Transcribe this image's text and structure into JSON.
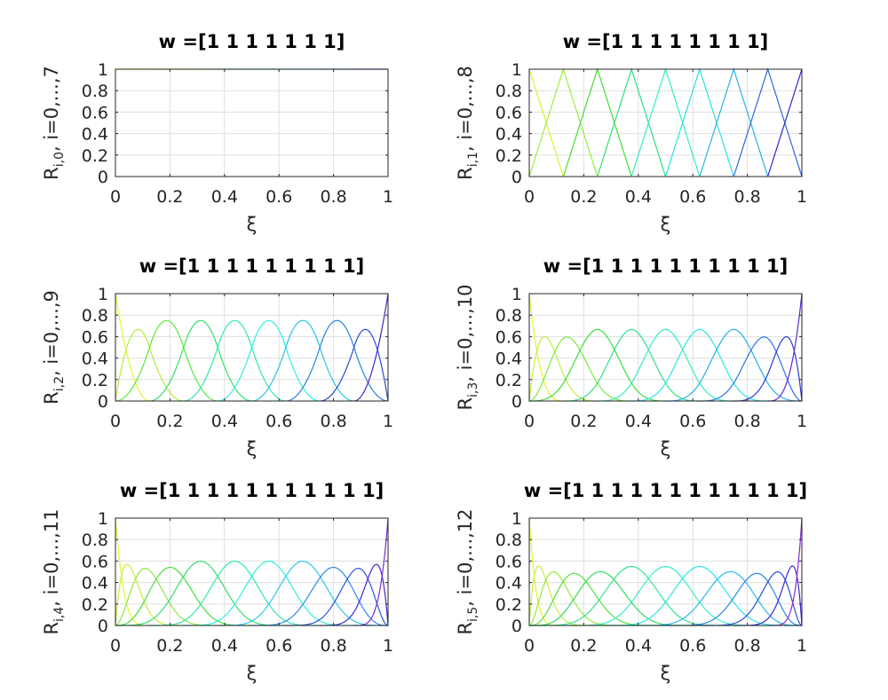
{
  "chart_data": [
    {
      "type": "line",
      "title": "w =[1 1 1 1 1 1 1]",
      "xlabel": "ξ",
      "ylabel": {
        "main": "R",
        "sub": "i,0",
        "suffix": ", i=0,...,7"
      },
      "xlim": [
        0,
        1
      ],
      "ylim": [
        0,
        1
      ],
      "xticks": [
        "0",
        "0.2",
        "0.4",
        "0.6",
        "0.8",
        "1"
      ],
      "yticks": [
        "0",
        "0.2",
        "0.4",
        "0.6",
        "0.8",
        "1"
      ],
      "grid": true,
      "degree": 0,
      "num_functions": 8,
      "colors": [
        "#e3f52a",
        "#bdf03a",
        "#7fe83c",
        "#3bdc5a",
        "#35e1b9",
        "#2ad9e8",
        "#2a9ce8",
        "#2a4cdc"
      ]
    },
    {
      "type": "line",
      "title": "w =[1 1 1 1 1 1 1 1]",
      "xlabel": "ξ",
      "ylabel": {
        "main": "R",
        "sub": "i,1",
        "suffix": ", i=0,...,8"
      },
      "xlim": [
        0,
        1
      ],
      "ylim": [
        0,
        1
      ],
      "xticks": [
        "0",
        "0.2",
        "0.4",
        "0.6",
        "0.8",
        "1"
      ],
      "yticks": [
        "0",
        "0.2",
        "0.4",
        "0.6",
        "0.8",
        "1"
      ],
      "grid": true,
      "degree": 1,
      "num_functions": 9,
      "colors": [
        "#d6f52a",
        "#9eee38",
        "#46dc36",
        "#2ee07d",
        "#2ef0c8",
        "#2ae0e0",
        "#27b3e6",
        "#2a6ae0",
        "#2a2ad0"
      ]
    },
    {
      "type": "line",
      "title": "w =[1 1 1 1 1 1 1 1 1]",
      "xlabel": "ξ",
      "ylabel": {
        "main": "R",
        "sub": "i,2",
        "suffix": ", i=0,...,9"
      },
      "xlim": [
        0,
        1
      ],
      "ylim": [
        0,
        1
      ],
      "xticks": [
        "0",
        "0.2",
        "0.4",
        "0.6",
        "0.8",
        "1"
      ],
      "yticks": [
        "0",
        "0.2",
        "0.4",
        "0.6",
        "0.8",
        "1"
      ],
      "grid": true,
      "degree": 2,
      "num_functions": 10,
      "colors": [
        "#e6f52a",
        "#b4f03a",
        "#5ee83a",
        "#33df6a",
        "#33e8a8",
        "#2ef0e0",
        "#2ac3ea",
        "#2a80e6",
        "#2a4ad6",
        "#3a2ac8"
      ]
    },
    {
      "type": "line",
      "title": "w =[1 1 1 1 1 1 1 1 1 1]",
      "xlabel": "ξ",
      "ylabel": {
        "main": "R",
        "sub": "i,3",
        "suffix": ", i=0,...,10"
      },
      "xlim": [
        0,
        1
      ],
      "ylim": [
        0,
        1
      ],
      "xticks": [
        "0",
        "0.2",
        "0.4",
        "0.6",
        "0.8",
        "1"
      ],
      "yticks": [
        "0",
        "0.2",
        "0.4",
        "0.6",
        "0.8",
        "1"
      ],
      "grid": true,
      "degree": 3,
      "num_functions": 11,
      "colors": [
        "#e6f52a",
        "#bff03a",
        "#7ee83c",
        "#3ede3c",
        "#33e08a",
        "#33ecc2",
        "#2ae6e6",
        "#2ab0ea",
        "#2a72e4",
        "#2a3cd4",
        "#5a2ad0"
      ]
    },
    {
      "type": "line",
      "title": "w =[1 1 1 1 1 1 1 1 1 1 1]",
      "xlabel": "ξ",
      "ylabel": {
        "main": "R",
        "sub": "i,4",
        "suffix": ", i=0,...,11"
      },
      "xlim": [
        0,
        1
      ],
      "ylim": [
        0,
        1
      ],
      "xticks": [
        "0",
        "0.2",
        "0.4",
        "0.6",
        "0.8",
        "1"
      ],
      "yticks": [
        "0",
        "0.2",
        "0.4",
        "0.6",
        "0.8",
        "1"
      ],
      "grid": true,
      "degree": 4,
      "num_functions": 12,
      "colors": [
        "#e6f52a",
        "#c4f03a",
        "#8ae83c",
        "#4adc3c",
        "#33dc6e",
        "#33e8a8",
        "#2ef0de",
        "#2ac8ec",
        "#2a8ce8",
        "#2a56dc",
        "#3a2ad0",
        "#7a2ad8"
      ]
    },
    {
      "type": "line",
      "title": "w =[1 1 1 1 1 1 1 1 1 1 1 1]",
      "xlabel": "ξ",
      "ylabel": {
        "main": "R",
        "sub": "i,5",
        "suffix": ", i=0,...,12"
      },
      "xlim": [
        0,
        1
      ],
      "ylim": [
        0,
        1
      ],
      "xticks": [
        "0",
        "0.2",
        "0.4",
        "0.6",
        "0.8",
        "1"
      ],
      "yticks": [
        "0",
        "0.2",
        "0.4",
        "0.6",
        "0.8",
        "1"
      ],
      "grid": true,
      "degree": 5,
      "num_functions": 13,
      "colors": [
        "#e6f52a",
        "#c8f03a",
        "#94ea3c",
        "#56de3c",
        "#33da5e",
        "#33e496",
        "#33eec8",
        "#2ae6e6",
        "#2ab8ec",
        "#2a84e8",
        "#2a4ed8",
        "#3a2ad0",
        "#8a2ad8"
      ]
    }
  ]
}
